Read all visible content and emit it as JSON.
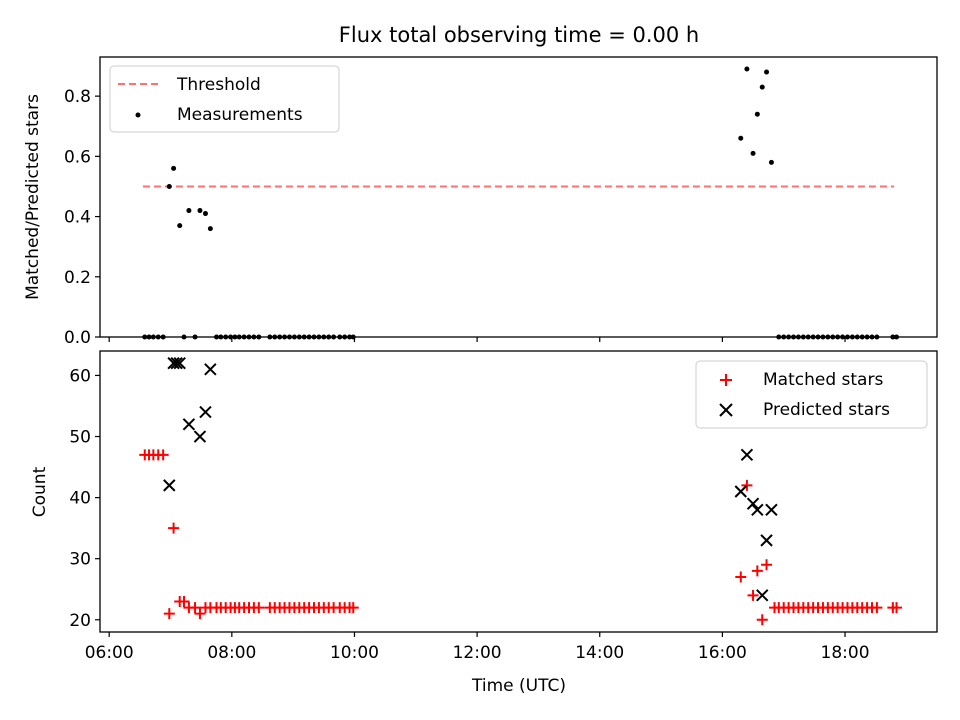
{
  "title": "Flux total observing time = 0.00 h",
  "colors": {
    "threshold": "#ff7070",
    "measurement": "#000000",
    "matched": "#ff0000",
    "predicted": "#000000"
  },
  "chart_data": [
    {
      "type": "scatter",
      "ylabel": "Matched/Predicted stars",
      "xlabel": "",
      "xlim": [
        5.85,
        19.5
      ],
      "ylim": [
        0,
        0.93
      ],
      "yticks": [
        0.0,
        0.2,
        0.4,
        0.6,
        0.8
      ],
      "ytick_labels": [
        "0.0",
        "0.2",
        "0.4",
        "0.6",
        "0.8"
      ],
      "legend": {
        "placement": "top-left",
        "entries": [
          "Threshold",
          "Measurements"
        ]
      },
      "threshold": {
        "name": "Threshold",
        "value": 0.5,
        "x_range": [
          6.55,
          18.8
        ]
      },
      "series": [
        {
          "name": "Measurements",
          "points": [
            [
              6.58,
              0
            ],
            [
              6.65,
              0
            ],
            [
              6.72,
              0
            ],
            [
              6.8,
              0
            ],
            [
              6.88,
              0
            ],
            [
              6.98,
              0.5
            ],
            [
              7.05,
              0.56
            ],
            [
              7.15,
              0.37
            ],
            [
              7.22,
              0
            ],
            [
              7.3,
              0.42
            ],
            [
              7.4,
              0
            ],
            [
              7.48,
              0.42
            ],
            [
              7.57,
              0.41
            ],
            [
              7.65,
              0.36
            ],
            [
              7.75,
              0
            ],
            [
              7.82,
              0
            ],
            [
              7.9,
              0
            ],
            [
              7.98,
              0
            ],
            [
              8.05,
              0
            ],
            [
              8.12,
              0
            ],
            [
              8.2,
              0
            ],
            [
              8.28,
              0
            ],
            [
              8.36,
              0
            ],
            [
              8.44,
              0
            ],
            [
              8.62,
              0
            ],
            [
              8.7,
              0
            ],
            [
              8.78,
              0
            ],
            [
              8.86,
              0
            ],
            [
              8.94,
              0
            ],
            [
              9.02,
              0
            ],
            [
              9.1,
              0
            ],
            [
              9.18,
              0
            ],
            [
              9.26,
              0
            ],
            [
              9.34,
              0
            ],
            [
              9.42,
              0
            ],
            [
              9.5,
              0
            ],
            [
              9.58,
              0
            ],
            [
              9.66,
              0
            ],
            [
              9.76,
              0
            ],
            [
              9.84,
              0
            ],
            [
              9.92,
              0
            ],
            [
              9.98,
              0
            ],
            [
              16.3,
              0.66
            ],
            [
              16.4,
              0.89
            ],
            [
              16.5,
              0.61
            ],
            [
              16.57,
              0.74
            ],
            [
              16.65,
              0.83
            ],
            [
              16.72,
              0.88
            ],
            [
              16.8,
              0.58
            ],
            [
              16.92,
              0
            ],
            [
              17.0,
              0
            ],
            [
              17.08,
              0
            ],
            [
              17.16,
              0
            ],
            [
              17.24,
              0
            ],
            [
              17.32,
              0
            ],
            [
              17.4,
              0
            ],
            [
              17.48,
              0
            ],
            [
              17.56,
              0
            ],
            [
              17.64,
              0
            ],
            [
              17.72,
              0
            ],
            [
              17.8,
              0
            ],
            [
              17.88,
              0
            ],
            [
              17.96,
              0
            ],
            [
              18.04,
              0
            ],
            [
              18.12,
              0
            ],
            [
              18.2,
              0
            ],
            [
              18.28,
              0
            ],
            [
              18.36,
              0
            ],
            [
              18.44,
              0
            ],
            [
              18.52,
              0
            ],
            [
              18.78,
              0
            ],
            [
              18.84,
              0
            ]
          ]
        }
      ]
    },
    {
      "type": "scatter",
      "ylabel": "Count",
      "xlabel": "Time (UTC)",
      "xlim": [
        5.85,
        19.5
      ],
      "ylim": [
        18,
        64
      ],
      "yticks": [
        20,
        30,
        40,
        50,
        60
      ],
      "ytick_labels": [
        "20",
        "30",
        "40",
        "50",
        "60"
      ],
      "xticks": [
        6,
        8,
        10,
        12,
        14,
        16,
        18
      ],
      "xtick_labels": [
        "06:00",
        "08:00",
        "10:00",
        "12:00",
        "14:00",
        "16:00",
        "18:00"
      ],
      "legend": {
        "placement": "top-right",
        "entries": [
          "Matched stars",
          "Predicted stars"
        ]
      },
      "series": [
        {
          "name": "Matched stars",
          "marker": "plus",
          "points": [
            [
              6.58,
              47
            ],
            [
              6.65,
              47
            ],
            [
              6.72,
              47
            ],
            [
              6.8,
              47
            ],
            [
              6.88,
              47
            ],
            [
              6.98,
              21
            ],
            [
              7.05,
              35
            ],
            [
              7.15,
              23
            ],
            [
              7.22,
              23
            ],
            [
              7.3,
              22
            ],
            [
              7.4,
              22
            ],
            [
              7.48,
              21
            ],
            [
              7.57,
              22
            ],
            [
              7.65,
              22
            ],
            [
              7.75,
              22
            ],
            [
              7.82,
              22
            ],
            [
              7.9,
              22
            ],
            [
              7.98,
              22
            ],
            [
              8.05,
              22
            ],
            [
              8.12,
              22
            ],
            [
              8.2,
              22
            ],
            [
              8.28,
              22
            ],
            [
              8.36,
              22
            ],
            [
              8.44,
              22
            ],
            [
              8.62,
              22
            ],
            [
              8.7,
              22
            ],
            [
              8.78,
              22
            ],
            [
              8.86,
              22
            ],
            [
              8.94,
              22
            ],
            [
              9.02,
              22
            ],
            [
              9.1,
              22
            ],
            [
              9.18,
              22
            ],
            [
              9.26,
              22
            ],
            [
              9.34,
              22
            ],
            [
              9.42,
              22
            ],
            [
              9.5,
              22
            ],
            [
              9.58,
              22
            ],
            [
              9.66,
              22
            ],
            [
              9.76,
              22
            ],
            [
              9.84,
              22
            ],
            [
              9.92,
              22
            ],
            [
              9.98,
              22
            ],
            [
              16.3,
              27
            ],
            [
              16.4,
              42
            ],
            [
              16.5,
              24
            ],
            [
              16.57,
              28
            ],
            [
              16.65,
              20
            ],
            [
              16.72,
              29
            ],
            [
              16.85,
              22
            ],
            [
              16.92,
              22
            ],
            [
              17.0,
              22
            ],
            [
              17.08,
              22
            ],
            [
              17.16,
              22
            ],
            [
              17.24,
              22
            ],
            [
              17.32,
              22
            ],
            [
              17.4,
              22
            ],
            [
              17.48,
              22
            ],
            [
              17.56,
              22
            ],
            [
              17.64,
              22
            ],
            [
              17.72,
              22
            ],
            [
              17.8,
              22
            ],
            [
              17.88,
              22
            ],
            [
              17.96,
              22
            ],
            [
              18.04,
              22
            ],
            [
              18.12,
              22
            ],
            [
              18.2,
              22
            ],
            [
              18.28,
              22
            ],
            [
              18.36,
              22
            ],
            [
              18.44,
              22
            ],
            [
              18.52,
              22
            ],
            [
              18.78,
              22
            ],
            [
              18.84,
              22
            ]
          ]
        },
        {
          "name": "Predicted stars",
          "marker": "x",
          "points": [
            [
              6.98,
              42
            ],
            [
              7.05,
              62
            ],
            [
              7.1,
              62
            ],
            [
              7.15,
              62
            ],
            [
              7.3,
              52
            ],
            [
              7.48,
              50
            ],
            [
              7.57,
              54
            ],
            [
              7.65,
              61
            ],
            [
              16.3,
              41
            ],
            [
              16.4,
              47
            ],
            [
              16.5,
              39
            ],
            [
              16.57,
              38
            ],
            [
              16.65,
              24
            ],
            [
              16.72,
              33
            ],
            [
              16.8,
              38
            ]
          ]
        }
      ]
    }
  ]
}
